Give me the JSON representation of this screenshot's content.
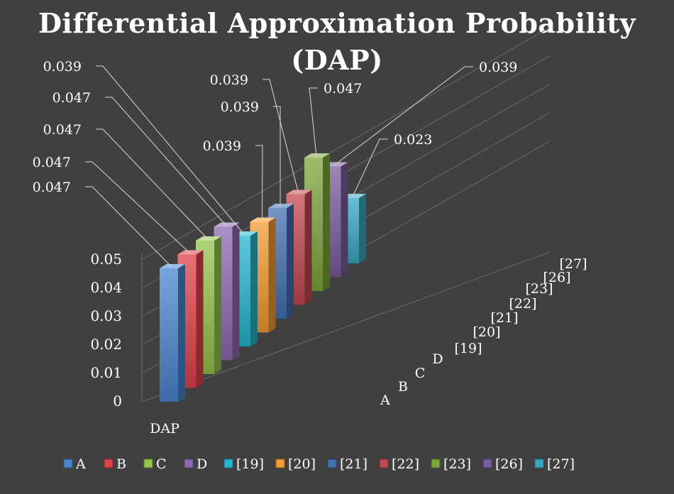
{
  "chart_data": {
    "type": "bar",
    "title": "Differential Approximation Probability",
    "subtitle": "(DAP)",
    "categories": [
      "DAP"
    ],
    "ylim": [
      0,
      0.05
    ],
    "yticks": [
      "0",
      "0.01",
      "0.02",
      "0.03",
      "0.04",
      "0.05"
    ],
    "grid": true,
    "legend_position": "bottom",
    "depth_labels": [
      "A",
      "B",
      "C",
      "D",
      "[19]",
      "[20]",
      "[21]",
      "[22]",
      "[23]",
      "[26]",
      "[27]"
    ],
    "series": [
      {
        "name": "A",
        "values": [
          0.047
        ],
        "label": "0.047",
        "color": "#4a86d0"
      },
      {
        "name": "B",
        "values": [
          0.047
        ],
        "label": "0.047",
        "color": "#e0424a"
      },
      {
        "name": "C",
        "values": [
          0.047
        ],
        "label": "0.047",
        "color": "#93c64b"
      },
      {
        "name": "D",
        "values": [
          0.047
        ],
        "label": "0.047",
        "color": "#8d6bb2"
      },
      {
        "name": "[19]",
        "values": [
          0.039
        ],
        "label": "0.039",
        "color": "#27b6cf"
      },
      {
        "name": "[20]",
        "values": [
          0.039
        ],
        "label": "0.039",
        "color": "#f49b32"
      },
      {
        "name": "[21]",
        "values": [
          0.039
        ],
        "label": "0.039",
        "color": "#4470b0"
      },
      {
        "name": "[22]",
        "values": [
          0.039
        ],
        "label": "0.039",
        "color": "#c24a4e"
      },
      {
        "name": "[23]",
        "values": [
          0.047
        ],
        "label": "0.047",
        "color": "#7fa63c"
      },
      {
        "name": "[26]",
        "values": [
          0.039
        ],
        "label": "0.039",
        "color": "#7a5d9e"
      },
      {
        "name": "[27]",
        "values": [
          0.023
        ],
        "label": "0.023",
        "color": "#36a9c2"
      }
    ]
  }
}
